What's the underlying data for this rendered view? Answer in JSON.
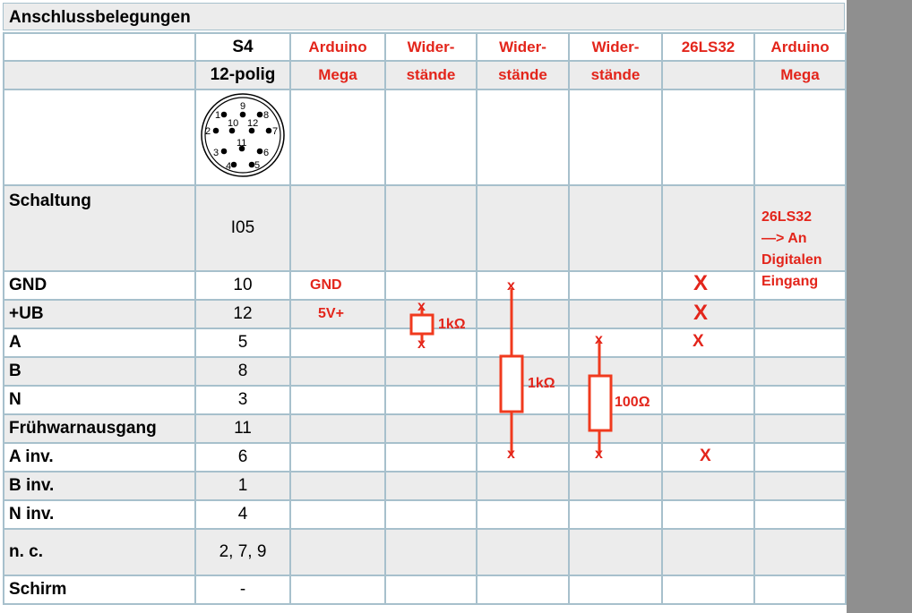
{
  "title": "Anschlussbelegungen",
  "headers": {
    "row1": [
      "",
      "S4",
      "Arduino",
      "Wider-",
      "Wider-",
      "Wider-",
      "26LS32",
      "Arduino"
    ],
    "row2": [
      "",
      "12-polig",
      "Mega",
      "stände",
      "stände",
      "stände",
      "",
      "Mega"
    ]
  },
  "connector": {
    "pins": [
      "1",
      "2",
      "3",
      "4",
      "5",
      "6",
      "7",
      "8",
      "9",
      "10",
      "11",
      "12"
    ]
  },
  "rows": [
    {
      "label": "Schaltung",
      "s4": "I05"
    },
    {
      "label": "GND",
      "s4": "10"
    },
    {
      "label": "+UB",
      "s4": "12"
    },
    {
      "label": "A",
      "s4": "5"
    },
    {
      "label": "B",
      "s4": "8"
    },
    {
      "label": "N",
      "s4": "3"
    },
    {
      "label": "Frühwarnausgang",
      "s4": "11"
    },
    {
      "label": "A inv.",
      "s4": "6"
    },
    {
      "label": "B inv.",
      "s4": "1"
    },
    {
      "label": "N inv.",
      "s4": "4"
    },
    {
      "label": "n. c.",
      "s4": "2, 7, 9"
    },
    {
      "label": "Schirm",
      "s4": "-"
    }
  ],
  "annotations": {
    "gnd": "GND",
    "ub": "5V+",
    "note": [
      "26LS32",
      "—> An",
      "Digitalen",
      "Eingang"
    ],
    "r1": "1kΩ",
    "r2": "1kΩ",
    "r3": "100Ω",
    "mark": "x",
    "bigmark": "X"
  },
  "colors": {
    "accent": "#e3251b",
    "grid": "#a7c0cc"
  }
}
